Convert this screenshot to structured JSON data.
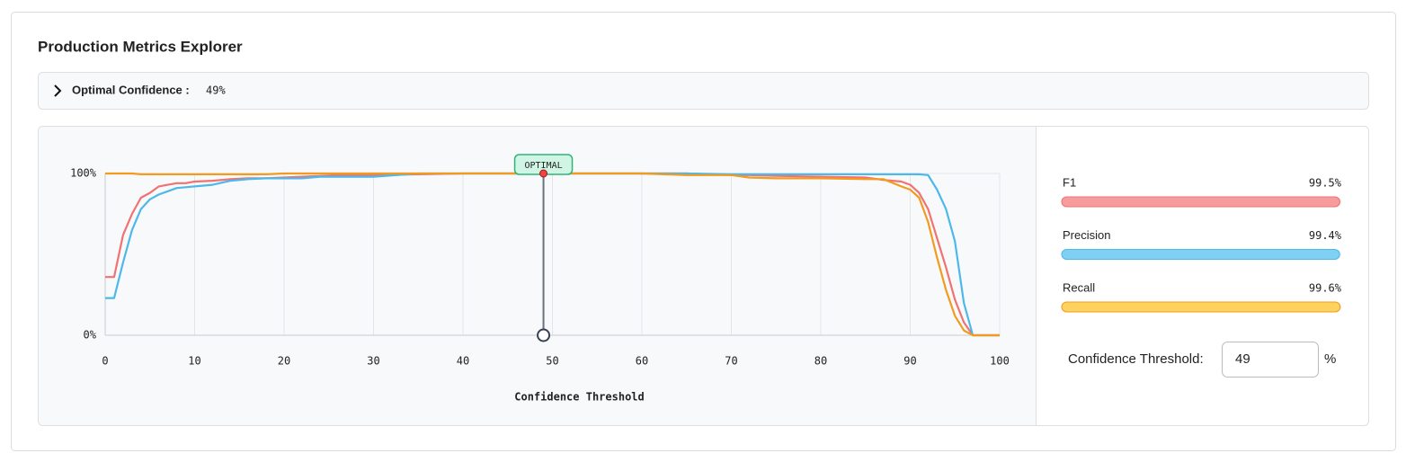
{
  "header": {
    "title": "Production Metrics Explorer"
  },
  "summary": {
    "label": "Optimal Confidence :",
    "value": "49%"
  },
  "chart_data": {
    "type": "line",
    "xlabel": "Confidence Threshold",
    "x": [
      0,
      1,
      2,
      3,
      4,
      5,
      6,
      7,
      8,
      9,
      10,
      12,
      14,
      16,
      18,
      20,
      22,
      24,
      26,
      30,
      35,
      40,
      45,
      49,
      55,
      60,
      65,
      70,
      72,
      75,
      80,
      85,
      87,
      89,
      90,
      91,
      92,
      93,
      94,
      95,
      96,
      97,
      98,
      99,
      100
    ],
    "xlim": [
      0,
      100
    ],
    "xticks": [
      0,
      10,
      20,
      30,
      40,
      50,
      60,
      70,
      80,
      90,
      100
    ],
    "ylim": [
      0,
      100
    ],
    "yticks": [
      {
        "value": 0,
        "label": "0%"
      },
      {
        "value": 100,
        "label": "100%"
      }
    ],
    "grid": true,
    "series": [
      {
        "name": "F1",
        "color": "#f07272",
        "bar_color": "#f79c9c",
        "score": 99.5,
        "score_label": "99.5%",
        "values": [
          36,
          36,
          62,
          75,
          85,
          88,
          92,
          93,
          94,
          94,
          95,
          95.5,
          96.5,
          97,
          97,
          97.5,
          98,
          98.5,
          99,
          99,
          99.5,
          100,
          100,
          100,
          100,
          100,
          100,
          99,
          99,
          98.5,
          98,
          97.5,
          96,
          95,
          93,
          88,
          78,
          60,
          42,
          22,
          8,
          0,
          0,
          0,
          0
        ]
      },
      {
        "name": "Precision",
        "color": "#4db8ea",
        "bar_color": "#80d0f5",
        "score": 99.4,
        "score_label": "99.4%",
        "values": [
          23,
          23,
          45,
          65,
          78,
          84,
          87,
          89,
          91,
          91.5,
          92,
          93,
          95.5,
          96.5,
          97,
          97,
          97,
          98,
          98,
          98,
          100,
          100,
          100,
          100,
          100,
          100,
          100,
          99.5,
          99.5,
          99.5,
          99.5,
          99.5,
          99.5,
          99.5,
          99.5,
          99.5,
          99,
          90,
          78,
          58,
          20,
          0,
          0,
          0,
          0
        ]
      },
      {
        "name": "Recall",
        "color": "#f29b1f",
        "bar_color": "#fdd35e",
        "score": 99.6,
        "score_label": "99.6%",
        "values": [
          100,
          100,
          100,
          100,
          99.5,
          99.5,
          99.5,
          99.5,
          99.5,
          99.5,
          99.5,
          99.5,
          99.5,
          99.5,
          99.5,
          100,
          100,
          100,
          100,
          100,
          100,
          100,
          100,
          100,
          100,
          100,
          99,
          99,
          97.5,
          97,
          97,
          96.5,
          96.5,
          92,
          90,
          85,
          70,
          48,
          28,
          12,
          3,
          0,
          0,
          0,
          0
        ]
      }
    ],
    "annotation": {
      "label": "OPTIMAL",
      "x": 49
    }
  },
  "threshold_input": {
    "label": "Confidence Threshold:",
    "value": "49",
    "unit": "%"
  }
}
